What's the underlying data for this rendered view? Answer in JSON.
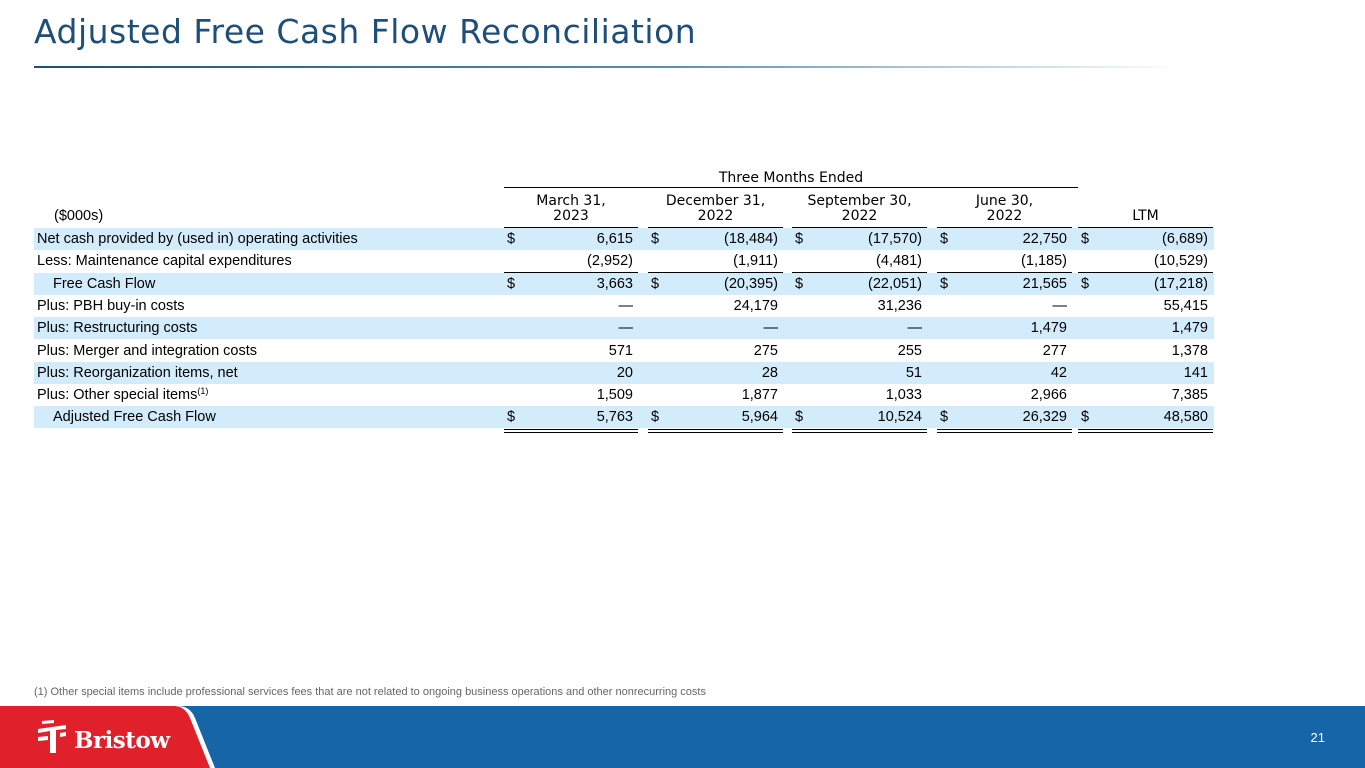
{
  "title": "Adjusted Free Cash Flow Reconciliation",
  "table": {
    "group_header": "Three Months Ended",
    "unit_label": "($000s)",
    "columns": [
      {
        "line1": "March 31,",
        "line2": "2023"
      },
      {
        "line1": "December 31,",
        "line2": "2022"
      },
      {
        "line1": "September  30,",
        "line2": "2022"
      },
      {
        "line1": "June 30,",
        "line2": "2022"
      },
      {
        "line1": "",
        "line2": "LTM"
      }
    ],
    "rows": [
      {
        "label": "Net cash provided by (used in) operating activities",
        "dollar": true,
        "values": [
          "6,615",
          "(18,484)",
          "(17,570)",
          "22,750",
          "(6,689)"
        ]
      },
      {
        "label": "Less: Maintenance capital expenditures",
        "dollar": false,
        "values": [
          "(2,952)",
          "(1,911)",
          "(4,481)",
          "(1,185)",
          "(10,529)"
        ]
      },
      {
        "label": "Free Cash Flow",
        "dollar": true,
        "values": [
          "3,663",
          "(20,395)",
          "(22,051)",
          "21,565",
          "(17,218)"
        ]
      },
      {
        "label": "Plus: PBH buy-in costs",
        "dollar": false,
        "values": [
          "—",
          "24,179",
          "31,236",
          "—",
          "55,415"
        ]
      },
      {
        "label": "Plus: Restructuring costs",
        "dollar": false,
        "values": [
          "—",
          "—",
          "—",
          "1,479",
          "1,479"
        ]
      },
      {
        "label": "Plus: Merger and integration costs",
        "dollar": false,
        "values": [
          "571",
          "275",
          "255",
          "277",
          "1,378"
        ]
      },
      {
        "label": "Plus: Reorganization items, net",
        "dollar": false,
        "values": [
          "20",
          "28",
          "51",
          "42",
          "141"
        ]
      },
      {
        "label": "Plus: Other special items",
        "sup": "(1)",
        "dollar": false,
        "values": [
          "1,509",
          "1,877",
          "1,033",
          "2,966",
          "7,385"
        ]
      },
      {
        "label": "Adjusted Free Cash Flow",
        "dollar": true,
        "values": [
          "5,763",
          "5,964",
          "10,524",
          "26,329",
          "48,580"
        ]
      }
    ],
    "dollar_sign": "$"
  },
  "footnote": "(1) Other special items include professional services fees that are not related to ongoing business operations and other nonrecurring costs",
  "brand": {
    "name": "Bristow",
    "red": "#e0202b",
    "blue": "#1565a7"
  },
  "page_number": "21"
}
